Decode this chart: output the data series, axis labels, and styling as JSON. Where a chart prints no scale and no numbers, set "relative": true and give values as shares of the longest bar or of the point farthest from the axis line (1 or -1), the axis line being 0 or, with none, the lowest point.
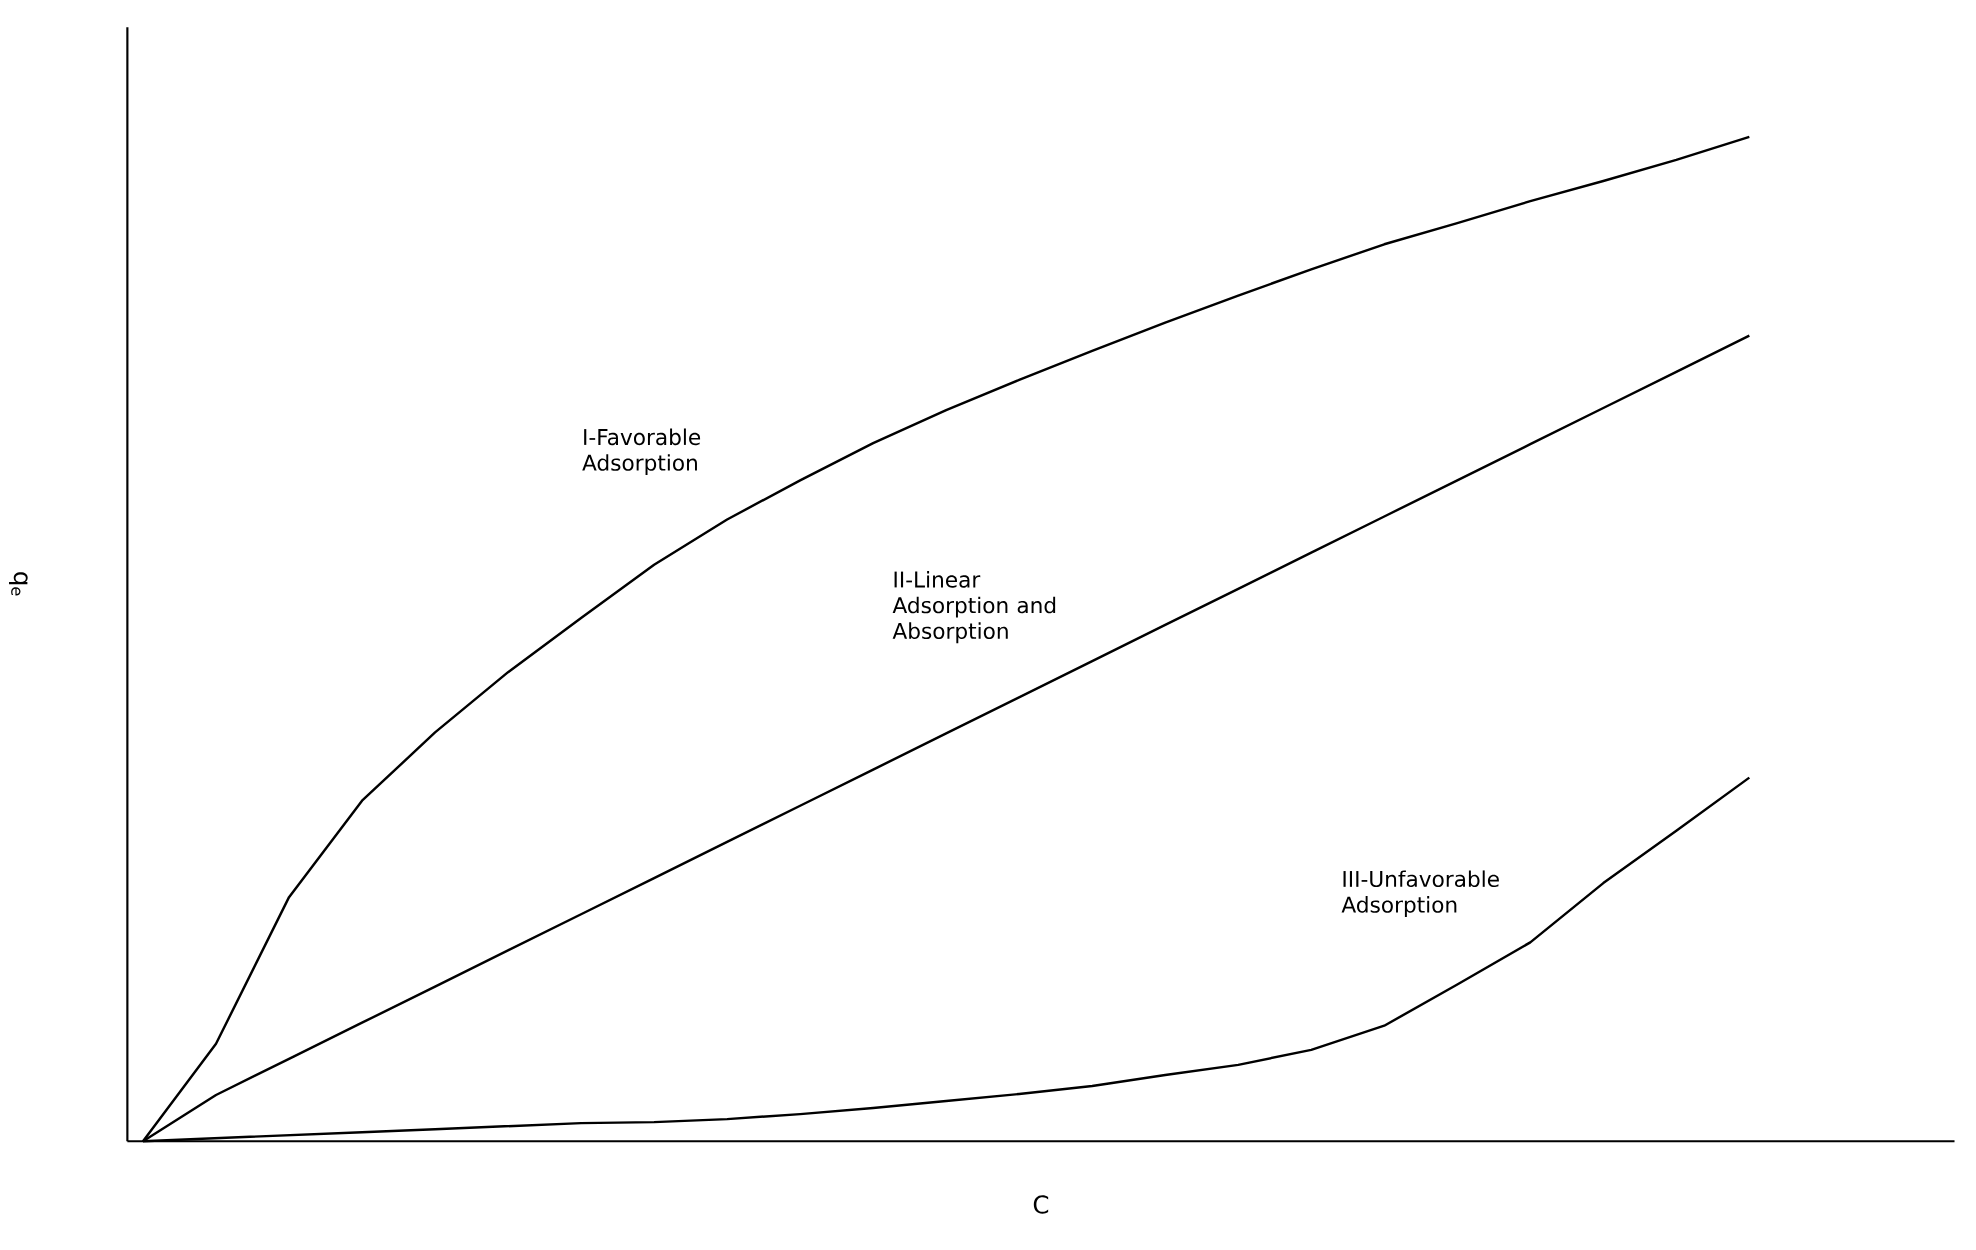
{
  "chart_data": {
    "type": "line",
    "relative": true,
    "xlabel": "C",
    "ylabel": "q$_{e}$",
    "legend": false,
    "marker": "none",
    "line_style": "solid",
    "categories": [
      null,
      null,
      null,
      null,
      null,
      null,
      null,
      null,
      null,
      null,
      null,
      null,
      null,
      null,
      null,
      null,
      null,
      null,
      null,
      null,
      null,
      null,
      null
    ],
    "series": [
      {
        "name": "I-Favorable Adsorption",
        "color": "#000000",
        "values": [
          0,
          0.097,
          0.243,
          0.339,
          0.407,
          0.467,
          0.521,
          0.574,
          0.619,
          0.658,
          0.695,
          0.728,
          0.758,
          0.787,
          0.815,
          0.842,
          0.868,
          0.893,
          0.914,
          0.936,
          0.956,
          0.977,
          1.0
        ]
      },
      {
        "name": "II-Linear Adsorption and Absorption",
        "color": "#000000",
        "values": [
          0,
          0.046,
          0.082,
          0.118,
          0.154,
          0.19,
          0.226,
          0.262,
          0.298,
          0.334,
          0.37,
          0.406,
          0.442,
          0.478,
          0.514,
          0.55,
          0.586,
          0.622,
          0.658,
          0.694,
          0.73,
          0.766,
          0.802
        ]
      },
      {
        "name": "III-Unfavorable Adsorption",
        "color": "#000000",
        "values": [
          0,
          0.003,
          0.006,
          0.009,
          0.012,
          0.015,
          0.018,
          0.019,
          0.022,
          0.027,
          0.033,
          0.04,
          0.047,
          0.055,
          0.066,
          0.076,
          0.091,
          0.115,
          0.156,
          0.198,
          0.257,
          0.309,
          0.362
        ]
      }
    ]
  }
}
